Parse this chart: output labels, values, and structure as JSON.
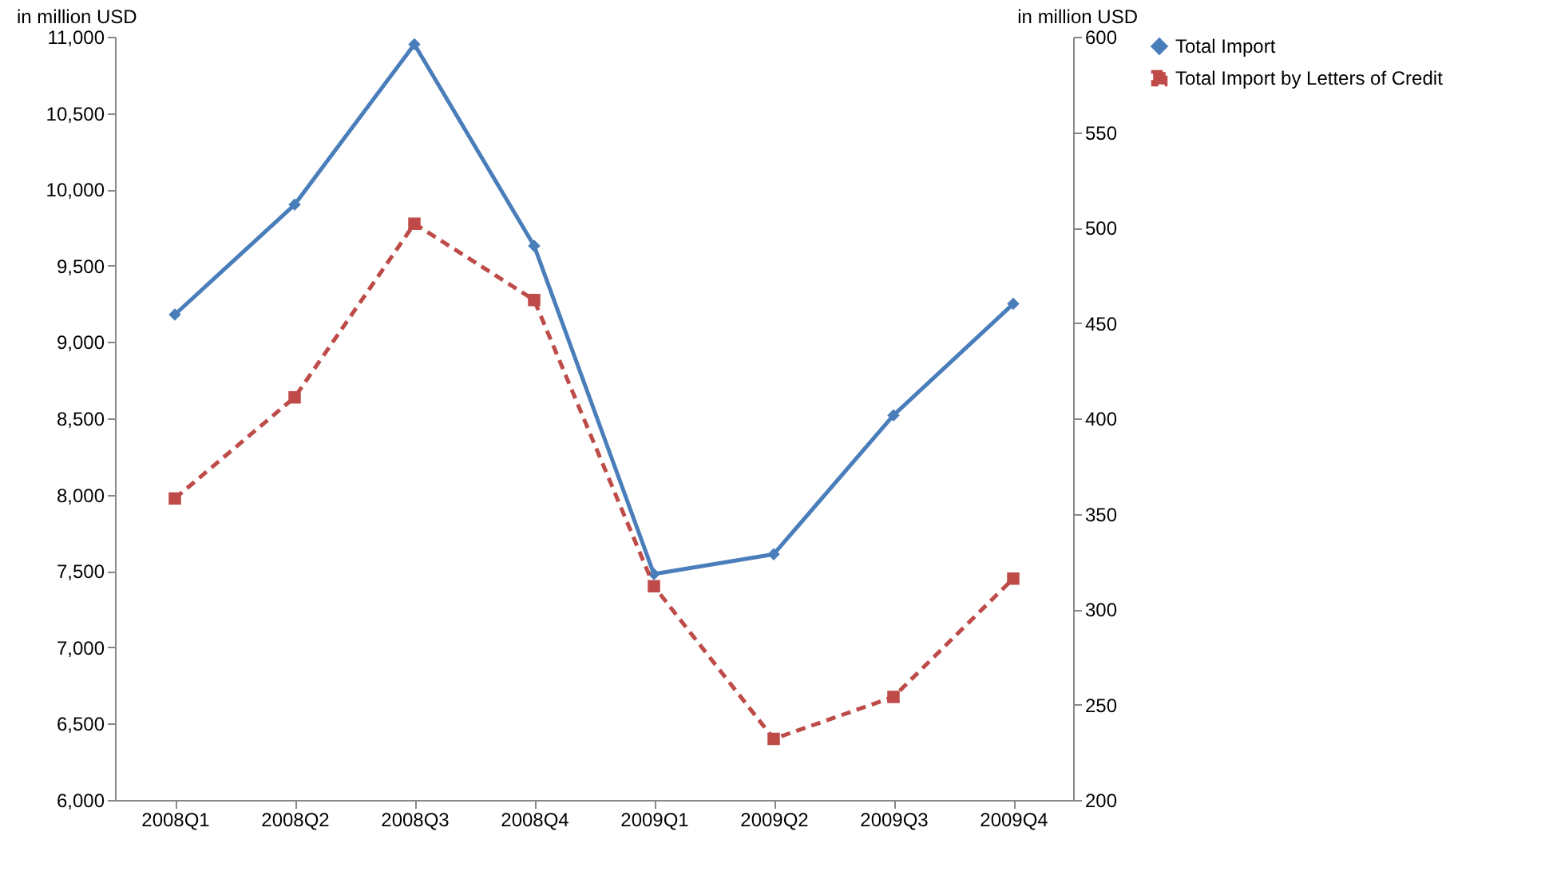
{
  "chart_data": {
    "type": "line",
    "ylabel": "in million USD",
    "y2label": "in million USD",
    "categories": [
      "2008Q1",
      "2008Q2",
      "2008Q3",
      "2008Q4",
      "2009Q1",
      "2009Q2",
      "2009Q3",
      "2009Q4"
    ],
    "series": [
      {
        "name": "Total Import",
        "color": "#4a7ebb",
        "marker": "diamond",
        "line_style": "solid",
        "values": [
          9180,
          9900,
          10950,
          9630,
          7480,
          7610,
          8520,
          9250
        ]
      },
      {
        "name": "Total Import by Letters of Credit",
        "color": "#be4b48",
        "marker": "square",
        "line_style": "dashed",
        "axis": "y2",
        "values": [
          358,
          411,
          502,
          462,
          312,
          232,
          254,
          316
        ]
      }
    ],
    "ylim": [
      6000,
      11000
    ],
    "yticks": [
      {
        "value": 6000,
        "label": "6,000"
      },
      {
        "value": 6500,
        "label": "6,500"
      },
      {
        "value": 7000,
        "label": "7,000"
      },
      {
        "value": 7500,
        "label": "7,500"
      },
      {
        "value": 8000,
        "label": "8,000"
      },
      {
        "value": 8500,
        "label": "8,500"
      },
      {
        "value": 9000,
        "label": "9,000"
      },
      {
        "value": 9500,
        "label": "9,500"
      },
      {
        "value": 10000,
        "label": "10,000"
      },
      {
        "value": 10500,
        "label": "10,500"
      },
      {
        "value": 11000,
        "label": "11,000"
      }
    ],
    "y2lim": [
      200,
      600
    ],
    "y2ticks": [
      200,
      250,
      300,
      350,
      400,
      450,
      500,
      550,
      600
    ],
    "grid": false,
    "legend": "right"
  }
}
